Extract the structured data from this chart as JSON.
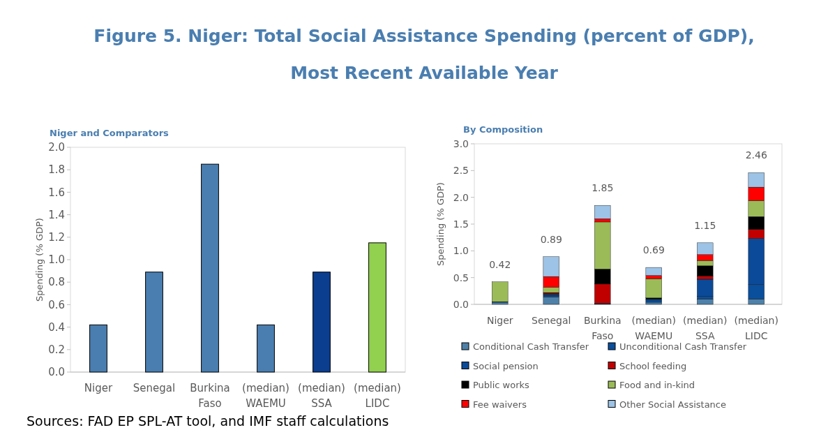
{
  "chart_data": [
    {
      "type": "bar",
      "title": "Figure 5. Niger: Total Social Assistance Spending (percent of GDP), Most Recent Available Year",
      "subtitle": "Niger and Comparators",
      "ylabel": "Spending  (% GDP)",
      "categories": [
        "Niger",
        "Senegal",
        "Burkina Faso",
        "(median) WAEMU",
        "(median) SSA",
        "(median) LIDC"
      ],
      "values": [
        0.42,
        0.89,
        1.85,
        0.42,
        0.89,
        1.15
      ],
      "colors": [
        "#4a7eb0",
        "#4a7eb0",
        "#4a7eb0",
        "#4a7eb0",
        "#0b3e8f",
        "#92d050"
      ],
      "ylim": [
        0,
        2
      ],
      "yticks": [
        {
          "value": 0,
          "label": "0.0"
        },
        {
          "value": 0.2,
          "label": "0.2"
        },
        {
          "value": 0.4,
          "label": "0.4"
        },
        {
          "value": 0.6,
          "label": "0.6"
        },
        {
          "value": 0.8,
          "label": "0.8"
        },
        {
          "value": 1,
          "label": "1.0"
        },
        {
          "value": 1.2,
          "label": "1.2"
        },
        {
          "value": 1.4,
          "label": "1.4"
        },
        {
          "value": 1.6,
          "label": "1.6"
        },
        {
          "value": 1.8,
          "label": "1.8"
        },
        {
          "value": 2,
          "label": "2.0"
        }
      ],
      "annotations": [
        "Sources: FAD EP SPL-AT tool, and IMF staff calculations"
      ]
    },
    {
      "type": "bar",
      "title": "By Composition",
      "ylabel": "Spending (% GDP)",
      "stacked": true,
      "legend": "bottom",
      "categories": [
        "Niger",
        "Senegal",
        "Burkina Faso",
        "(median) WAEMU",
        "(median) SSA",
        "(median) LIDC"
      ],
      "series": [
        {
          "name": "Conditional Cash Transfer",
          "color": "#4f81a8",
          "values": [
            0.04,
            0.14,
            0.01,
            0.04,
            0.1,
            0.1
          ]
        },
        {
          "name": "Unconditional Cash Transfer",
          "color": "#0a4f9c",
          "values": [
            0.01,
            0.03,
            0.01,
            0.04,
            0.05,
            0.27
          ]
        },
        {
          "name": "Social pension",
          "color": "#0b4a98",
          "values": [
            0,
            0.02,
            0,
            0.02,
            0.32,
            0.86
          ]
        },
        {
          "name": "School feeding",
          "color": "#c00000",
          "values": [
            0,
            0.02,
            0.36,
            0,
            0.06,
            0.17
          ]
        },
        {
          "name": "Public works",
          "color": "#000000",
          "values": [
            0,
            0.01,
            0.28,
            0.02,
            0.19,
            0.24
          ]
        },
        {
          "name": "Food and in-kind",
          "color": "#9bbb59",
          "values": [
            0.37,
            0.1,
            0.88,
            0.36,
            0.1,
            0.3
          ]
        },
        {
          "name": "Fee waivers",
          "color": "#ff0000",
          "values": [
            0,
            0.2,
            0.06,
            0.06,
            0.11,
            0.25
          ]
        },
        {
          "name": "Other Social Assistance",
          "color": "#9dc3e6",
          "values": [
            0,
            0.37,
            0.25,
            0.15,
            0.22,
            0.27
          ]
        }
      ],
      "totals": [
        "0.42",
        "0.89",
        "1.85",
        "0.69",
        "1.15",
        "2.46"
      ],
      "ylim": [
        0,
        3
      ],
      "yticks": [
        {
          "value": 0,
          "label": "0.0"
        },
        {
          "value": 0.5,
          "label": "0.5"
        },
        {
          "value": 1,
          "label": "1.0"
        },
        {
          "value": 1.5,
          "label": "1.5"
        },
        {
          "value": 2,
          "label": "2.0"
        },
        {
          "value": 2.5,
          "label": "2.5"
        },
        {
          "value": 3,
          "label": "3.0"
        }
      ]
    }
  ]
}
